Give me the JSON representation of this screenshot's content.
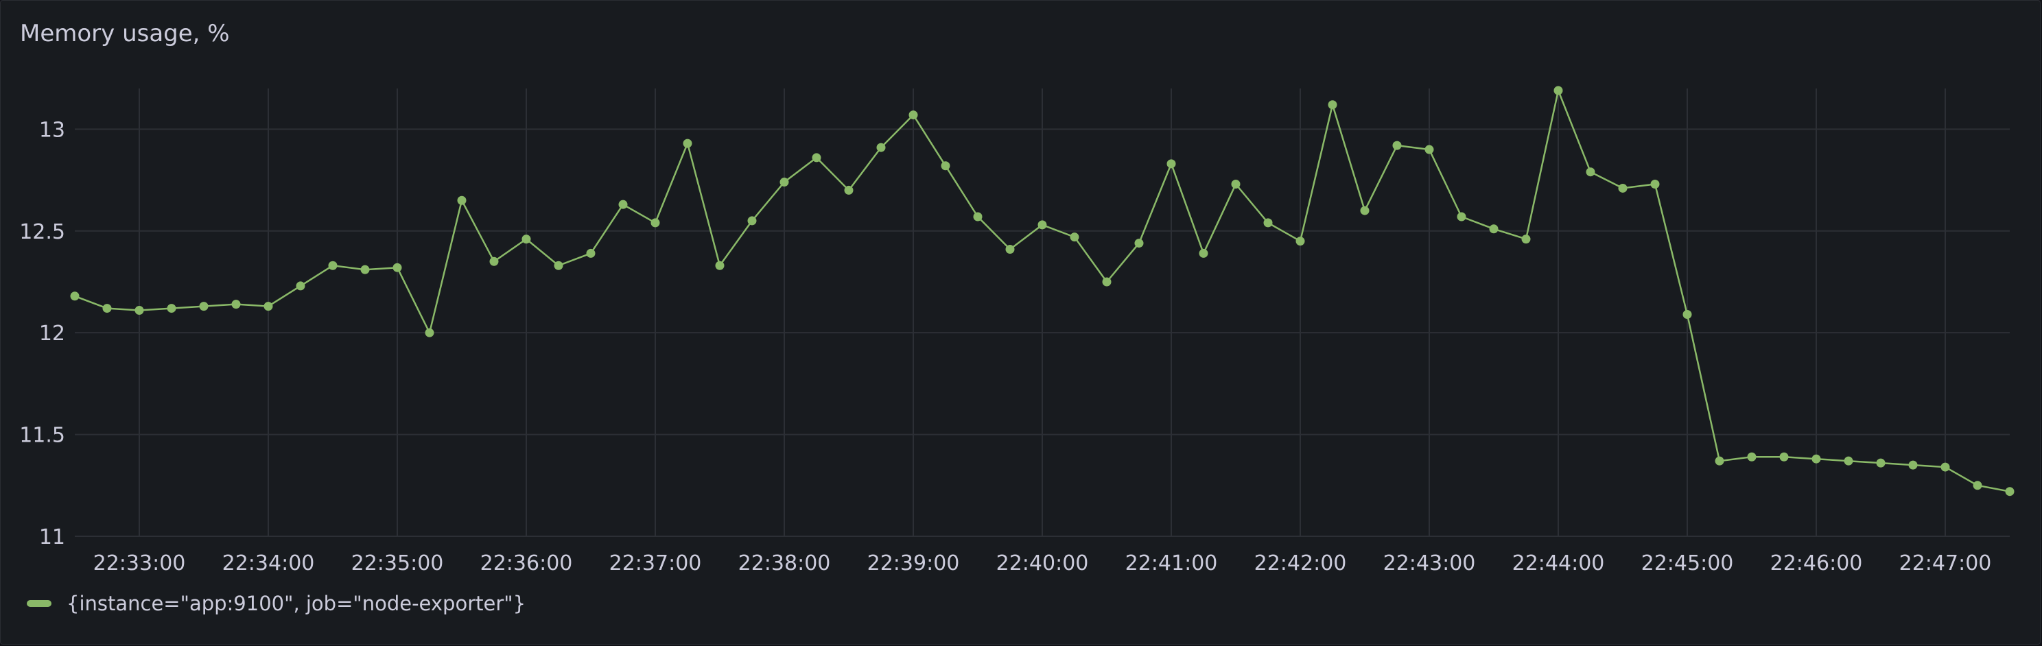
{
  "panel": {
    "title": "Memory usage, %"
  },
  "chart_data": {
    "type": "line",
    "title": "Memory usage, %",
    "xlabel": "",
    "ylabel": "",
    "x_interval_seconds": 15,
    "x_start": "22:32:30",
    "x_end": "22:47:30",
    "xlim": [
      "22:32:30",
      "22:47:30"
    ],
    "ylim": [
      11,
      13.2
    ],
    "y_ticks": [
      11,
      11.5,
      12,
      12.5,
      13
    ],
    "y_tick_labels": [
      "11",
      "11.5",
      "12",
      "12.5",
      "13"
    ],
    "x_tick_labels": [
      "22:33:00",
      "22:34:00",
      "22:35:00",
      "22:36:00",
      "22:37:00",
      "22:38:00",
      "22:39:00",
      "22:40:00",
      "22:41:00",
      "22:42:00",
      "22:43:00",
      "22:44:00",
      "22:45:00",
      "22:46:00",
      "22:47:00"
    ],
    "grid": true,
    "legend_position": "bottom-left",
    "series": [
      {
        "name": "{instance=\"app:9100\", job=\"node-exporter\"}",
        "color": "#8ab968",
        "values": [
          12.18,
          12.12,
          12.11,
          12.12,
          12.13,
          12.14,
          12.13,
          12.23,
          12.33,
          12.31,
          12.32,
          12.0,
          12.65,
          12.35,
          12.46,
          12.33,
          12.39,
          12.63,
          12.54,
          12.93,
          12.33,
          12.55,
          12.74,
          12.86,
          12.7,
          12.91,
          13.07,
          12.82,
          12.57,
          12.41,
          12.53,
          12.47,
          12.25,
          12.44,
          12.83,
          12.39,
          12.73,
          12.54,
          12.45,
          13.12,
          12.6,
          12.92,
          12.9,
          12.57,
          12.51,
          12.46,
          13.19,
          12.79,
          12.71,
          12.73,
          12.09,
          11.37,
          11.39,
          11.39,
          11.38,
          11.37,
          11.36,
          11.35,
          11.34,
          11.25,
          11.22
        ]
      }
    ]
  }
}
